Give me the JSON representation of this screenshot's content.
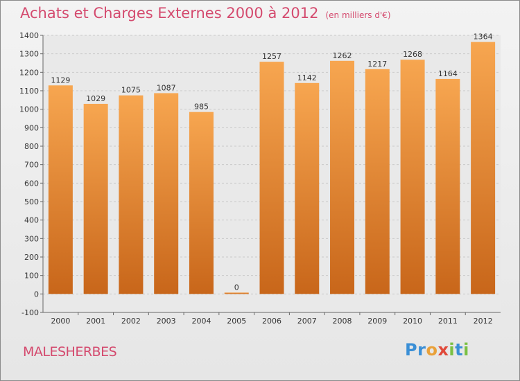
{
  "chart_data": {
    "type": "bar",
    "title": "Achats et Charges Externes 2000 à 2012",
    "subtitle": "(en milliers d'€)",
    "categories": [
      "2000",
      "2001",
      "2002",
      "2003",
      "2004",
      "2005",
      "2006",
      "2007",
      "2008",
      "2009",
      "2010",
      "2011",
      "2012"
    ],
    "values": [
      1129,
      1029,
      1075,
      1087,
      985,
      0,
      1257,
      1142,
      1262,
      1217,
      1268,
      1164,
      1364
    ],
    "ylim": [
      -100,
      1400
    ],
    "yticks": [
      -100,
      0,
      100,
      200,
      300,
      400,
      500,
      600,
      700,
      800,
      900,
      1000,
      1100,
      1200,
      1300,
      1400
    ],
    "grid": true,
    "bar_color_top": "#f7a650",
    "bar_color_bottom": "#c8661a"
  },
  "footer": {
    "commune": "MALESHERBES",
    "logo_letters": [
      {
        "ch": "P",
        "color": "#3a8fd6"
      },
      {
        "ch": "r",
        "color": "#3a8fd6"
      },
      {
        "ch": "o",
        "color": "#e9a13a"
      },
      {
        "ch": "x",
        "color": "#e0493a"
      },
      {
        "ch": "i",
        "color": "#7ac043"
      },
      {
        "ch": "t",
        "color": "#3a8fd6"
      },
      {
        "ch": "i",
        "color": "#7ac043"
      }
    ]
  }
}
